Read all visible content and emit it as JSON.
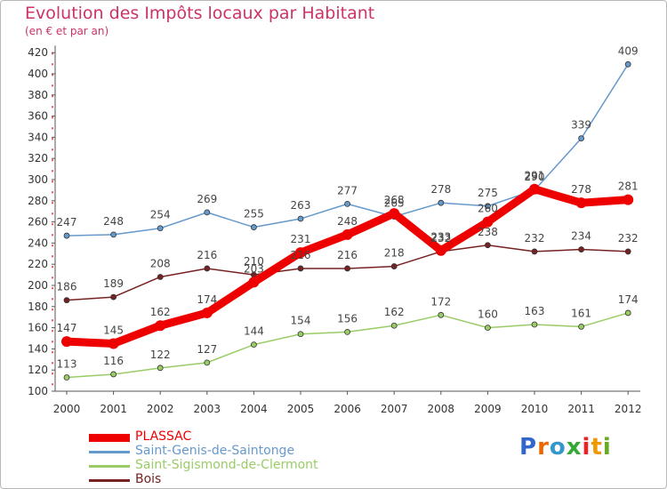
{
  "chart_data": {
    "type": "line",
    "title": "Evolution des Impôts locaux par Habitant",
    "subtitle": "(en € et par an)",
    "x": [
      "2000",
      "2001",
      "2002",
      "2003",
      "2004",
      "2005",
      "2006",
      "2007",
      "2008",
      "2009",
      "2010",
      "2011",
      "2012"
    ],
    "yticks": [
      "100",
      "120",
      "140",
      "160",
      "180",
      "200",
      "220",
      "240",
      "260",
      "280",
      "300",
      "320",
      "340",
      "360",
      "380",
      "400",
      "420"
    ],
    "ylim": [
      100,
      420
    ],
    "grid": false,
    "legend_position": "bottom-left",
    "series": [
      {
        "name": "PLASSAC",
        "color": "#ee0000",
        "values": [
          147,
          145,
          162,
          174,
          203,
          231,
          248,
          268,
          233,
          260,
          291,
          278,
          281
        ]
      },
      {
        "name": "Saint-Genis-de-Saintonge",
        "color": "#6699cc",
        "values": [
          247,
          248,
          254,
          269,
          255,
          263,
          277,
          265,
          278,
          275,
          290,
          339,
          409
        ]
      },
      {
        "name": "Saint-Sigismond-de-Clermont",
        "color": "#99cc66",
        "values": [
          113,
          116,
          122,
          127,
          144,
          154,
          156,
          162,
          172,
          160,
          163,
          161,
          174
        ]
      },
      {
        "name": "Bois",
        "color": "#772222",
        "values": [
          186,
          189,
          208,
          216,
          210,
          216,
          216,
          218,
          232,
          238,
          232,
          234,
          232
        ]
      }
    ]
  },
  "branding": {
    "logo_text": "Proxiti"
  }
}
